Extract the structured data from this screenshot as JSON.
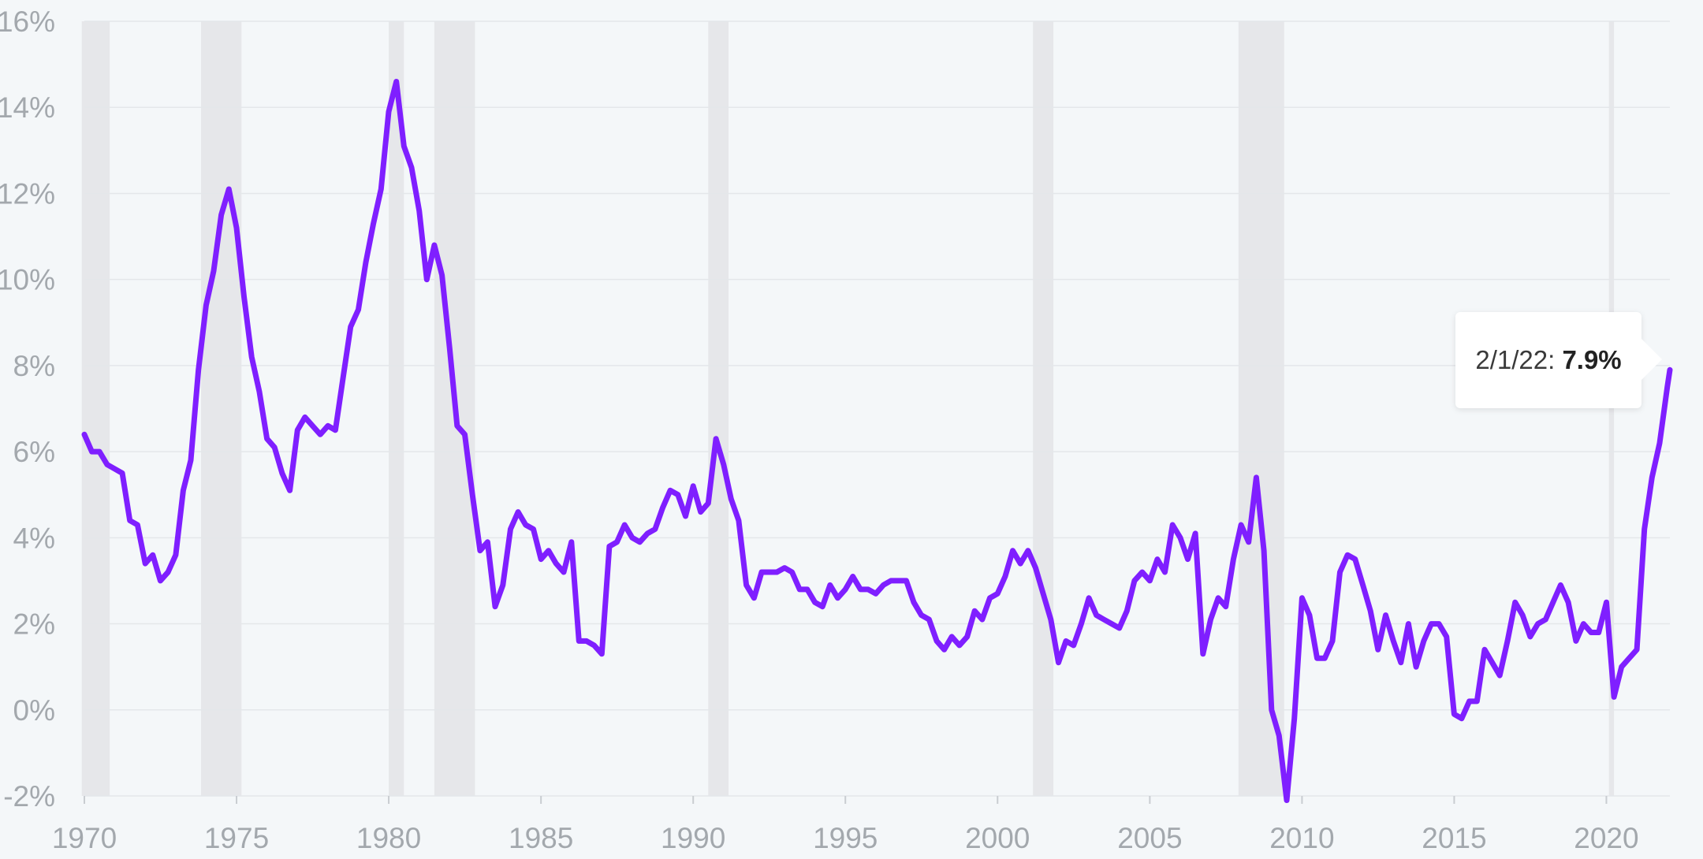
{
  "chart_data": {
    "type": "line",
    "title": "",
    "xlabel": "",
    "ylabel": "",
    "xlim": [
      "1970-01-01",
      "2022-02-01"
    ],
    "ylim": [
      -2,
      16
    ],
    "x_ticks": [
      "1970",
      "1975",
      "1980",
      "1985",
      "1990",
      "1995",
      "2000",
      "2005",
      "2010",
      "2015",
      "2020"
    ],
    "y_ticks": [
      "-2%",
      "0%",
      "2%",
      "4%",
      "6%",
      "8%",
      "10%",
      "12%",
      "14%",
      "16%"
    ],
    "grid": "horizontal",
    "line_color": "#7f1fff",
    "shade_color": "#e6e7ea",
    "recession_shading": [
      [
        "1969-12-01",
        "1970-11-01"
      ],
      [
        "1973-11-01",
        "1975-03-01"
      ],
      [
        "1980-01-01",
        "1980-07-01"
      ],
      [
        "1981-07-01",
        "1982-11-01"
      ],
      [
        "1990-07-01",
        "1991-03-01"
      ],
      [
        "2001-03-01",
        "2001-11-01"
      ],
      [
        "2007-12-01",
        "2009-06-01"
      ],
      [
        "2020-02-01",
        "2020-04-01"
      ]
    ],
    "series": [
      {
        "points": [
          [
            "1970-01-01",
            6.4
          ],
          [
            "1970-04-01",
            6.0
          ],
          [
            "1970-07-01",
            6.0
          ],
          [
            "1970-10-01",
            5.7
          ],
          [
            "1971-01-01",
            5.6
          ],
          [
            "1971-04-01",
            5.5
          ],
          [
            "1971-07-01",
            4.4
          ],
          [
            "1971-10-01",
            4.3
          ],
          [
            "1972-01-01",
            3.4
          ],
          [
            "1972-04-01",
            3.6
          ],
          [
            "1972-07-01",
            3.0
          ],
          [
            "1972-10-01",
            3.2
          ],
          [
            "1973-01-01",
            3.6
          ],
          [
            "1973-04-01",
            5.1
          ],
          [
            "1973-07-01",
            5.8
          ],
          [
            "1973-10-01",
            7.9
          ],
          [
            "1974-01-01",
            9.4
          ],
          [
            "1974-04-01",
            10.2
          ],
          [
            "1974-07-01",
            11.5
          ],
          [
            "1974-10-01",
            12.1
          ],
          [
            "1975-01-01",
            11.2
          ],
          [
            "1975-04-01",
            9.6
          ],
          [
            "1975-07-01",
            8.2
          ],
          [
            "1975-10-01",
            7.4
          ],
          [
            "1976-01-01",
            6.3
          ],
          [
            "1976-04-01",
            6.1
          ],
          [
            "1976-07-01",
            5.5
          ],
          [
            "1976-10-01",
            5.1
          ],
          [
            "1977-01-01",
            6.5
          ],
          [
            "1977-04-01",
            6.8
          ],
          [
            "1977-07-01",
            6.6
          ],
          [
            "1977-10-01",
            6.4
          ],
          [
            "1978-01-01",
            6.6
          ],
          [
            "1978-04-01",
            6.5
          ],
          [
            "1978-07-01",
            7.7
          ],
          [
            "1978-10-01",
            8.9
          ],
          [
            "1979-01-01",
            9.3
          ],
          [
            "1979-04-01",
            10.4
          ],
          [
            "1979-07-01",
            11.3
          ],
          [
            "1979-10-01",
            12.1
          ],
          [
            "1980-01-01",
            13.9
          ],
          [
            "1980-04-01",
            14.6
          ],
          [
            "1980-07-01",
            13.1
          ],
          [
            "1980-10-01",
            12.6
          ],
          [
            "1981-01-01",
            11.6
          ],
          [
            "1981-04-01",
            10.0
          ],
          [
            "1981-07-01",
            10.8
          ],
          [
            "1981-10-01",
            10.1
          ],
          [
            "1982-01-01",
            8.4
          ],
          [
            "1982-04-01",
            6.6
          ],
          [
            "1982-07-01",
            6.4
          ],
          [
            "1982-10-01",
            5.0
          ],
          [
            "1983-01-01",
            3.7
          ],
          [
            "1983-04-01",
            3.9
          ],
          [
            "1983-07-01",
            2.4
          ],
          [
            "1983-10-01",
            2.9
          ],
          [
            "1984-01-01",
            4.2
          ],
          [
            "1984-04-01",
            4.6
          ],
          [
            "1984-07-01",
            4.3
          ],
          [
            "1984-10-01",
            4.2
          ],
          [
            "1985-01-01",
            3.5
          ],
          [
            "1985-04-01",
            3.7
          ],
          [
            "1985-07-01",
            3.4
          ],
          [
            "1985-10-01",
            3.2
          ],
          [
            "1986-01-01",
            3.9
          ],
          [
            "1986-04-01",
            1.6
          ],
          [
            "1986-07-01",
            1.6
          ],
          [
            "1986-10-01",
            1.5
          ],
          [
            "1987-01-01",
            1.3
          ],
          [
            "1987-04-01",
            3.8
          ],
          [
            "1987-07-01",
            3.9
          ],
          [
            "1987-10-01",
            4.3
          ],
          [
            "1988-01-01",
            4.0
          ],
          [
            "1988-04-01",
            3.9
          ],
          [
            "1988-07-01",
            4.1
          ],
          [
            "1988-10-01",
            4.2
          ],
          [
            "1989-01-01",
            4.7
          ],
          [
            "1989-04-01",
            5.1
          ],
          [
            "1989-07-01",
            5.0
          ],
          [
            "1989-10-01",
            4.5
          ],
          [
            "1990-01-01",
            5.2
          ],
          [
            "1990-04-01",
            4.6
          ],
          [
            "1990-07-01",
            4.8
          ],
          [
            "1990-10-01",
            6.3
          ],
          [
            "1991-01-01",
            5.7
          ],
          [
            "1991-04-01",
            4.9
          ],
          [
            "1991-07-01",
            4.4
          ],
          [
            "1991-10-01",
            2.9
          ],
          [
            "1992-01-01",
            2.6
          ],
          [
            "1992-04-01",
            3.2
          ],
          [
            "1992-07-01",
            3.2
          ],
          [
            "1992-10-01",
            3.2
          ],
          [
            "1993-01-01",
            3.3
          ],
          [
            "1993-04-01",
            3.2
          ],
          [
            "1993-07-01",
            2.8
          ],
          [
            "1993-10-01",
            2.8
          ],
          [
            "1994-01-01",
            2.5
          ],
          [
            "1994-04-01",
            2.4
          ],
          [
            "1994-07-01",
            2.9
          ],
          [
            "1994-10-01",
            2.6
          ],
          [
            "1995-01-01",
            2.8
          ],
          [
            "1995-04-01",
            3.1
          ],
          [
            "1995-07-01",
            2.8
          ],
          [
            "1995-10-01",
            2.8
          ],
          [
            "1996-01-01",
            2.7
          ],
          [
            "1996-04-01",
            2.9
          ],
          [
            "1996-07-01",
            3.0
          ],
          [
            "1996-10-01",
            3.0
          ],
          [
            "1997-01-01",
            3.0
          ],
          [
            "1997-04-01",
            2.5
          ],
          [
            "1997-07-01",
            2.2
          ],
          [
            "1997-10-01",
            2.1
          ],
          [
            "1998-01-01",
            1.6
          ],
          [
            "1998-04-01",
            1.4
          ],
          [
            "1998-07-01",
            1.7
          ],
          [
            "1998-10-01",
            1.5
          ],
          [
            "1999-01-01",
            1.7
          ],
          [
            "1999-04-01",
            2.3
          ],
          [
            "1999-07-01",
            2.1
          ],
          [
            "1999-10-01",
            2.6
          ],
          [
            "2000-01-01",
            2.7
          ],
          [
            "2000-04-01",
            3.1
          ],
          [
            "2000-07-01",
            3.7
          ],
          [
            "2000-10-01",
            3.4
          ],
          [
            "2001-01-01",
            3.7
          ],
          [
            "2001-04-01",
            3.3
          ],
          [
            "2001-07-01",
            2.7
          ],
          [
            "2001-10-01",
            2.1
          ],
          [
            "2002-01-01",
            1.1
          ],
          [
            "2002-04-01",
            1.6
          ],
          [
            "2002-07-01",
            1.5
          ],
          [
            "2002-10-01",
            2.0
          ],
          [
            "2003-01-01",
            2.6
          ],
          [
            "2003-04-01",
            2.2
          ],
          [
            "2003-07-01",
            2.1
          ],
          [
            "2003-10-01",
            2.0
          ],
          [
            "2004-01-01",
            1.9
          ],
          [
            "2004-04-01",
            2.3
          ],
          [
            "2004-07-01",
            3.0
          ],
          [
            "2004-10-01",
            3.2
          ],
          [
            "2005-01-01",
            3.0
          ],
          [
            "2005-04-01",
            3.5
          ],
          [
            "2005-07-01",
            3.2
          ],
          [
            "2005-10-01",
            4.3
          ],
          [
            "2006-01-01",
            4.0
          ],
          [
            "2006-04-01",
            3.5
          ],
          [
            "2006-07-01",
            4.1
          ],
          [
            "2006-10-01",
            1.3
          ],
          [
            "2007-01-01",
            2.1
          ],
          [
            "2007-04-01",
            2.6
          ],
          [
            "2007-07-01",
            2.4
          ],
          [
            "2007-10-01",
            3.5
          ],
          [
            "2008-01-01",
            4.3
          ],
          [
            "2008-04-01",
            3.9
          ],
          [
            "2008-07-01",
            5.4
          ],
          [
            "2008-10-01",
            3.7
          ],
          [
            "2009-01-01",
            0.0
          ],
          [
            "2009-04-01",
            -0.6
          ],
          [
            "2009-07-01",
            -2.1
          ],
          [
            "2009-10-01",
            -0.2
          ],
          [
            "2010-01-01",
            2.6
          ],
          [
            "2010-04-01",
            2.2
          ],
          [
            "2010-07-01",
            1.2
          ],
          [
            "2010-10-01",
            1.2
          ],
          [
            "2011-01-01",
            1.6
          ],
          [
            "2011-04-01",
            3.2
          ],
          [
            "2011-07-01",
            3.6
          ],
          [
            "2011-10-01",
            3.5
          ],
          [
            "2012-01-01",
            2.9
          ],
          [
            "2012-04-01",
            2.3
          ],
          [
            "2012-07-01",
            1.4
          ],
          [
            "2012-10-01",
            2.2
          ],
          [
            "2013-01-01",
            1.6
          ],
          [
            "2013-04-01",
            1.1
          ],
          [
            "2013-07-01",
            2.0
          ],
          [
            "2013-10-01",
            1.0
          ],
          [
            "2014-01-01",
            1.6
          ],
          [
            "2014-04-01",
            2.0
          ],
          [
            "2014-07-01",
            2.0
          ],
          [
            "2014-10-01",
            1.7
          ],
          [
            "2015-01-01",
            -0.1
          ],
          [
            "2015-04-01",
            -0.2
          ],
          [
            "2015-07-01",
            0.2
          ],
          [
            "2015-10-01",
            0.2
          ],
          [
            "2016-01-01",
            1.4
          ],
          [
            "2016-04-01",
            1.1
          ],
          [
            "2016-07-01",
            0.8
          ],
          [
            "2016-10-01",
            1.6
          ],
          [
            "2017-01-01",
            2.5
          ],
          [
            "2017-04-01",
            2.2
          ],
          [
            "2017-07-01",
            1.7
          ],
          [
            "2017-10-01",
            2.0
          ],
          [
            "2018-01-01",
            2.1
          ],
          [
            "2018-04-01",
            2.5
          ],
          [
            "2018-07-01",
            2.9
          ],
          [
            "2018-10-01",
            2.5
          ],
          [
            "2019-01-01",
            1.6
          ],
          [
            "2019-04-01",
            2.0
          ],
          [
            "2019-07-01",
            1.8
          ],
          [
            "2019-10-01",
            1.8
          ],
          [
            "2020-01-01",
            2.5
          ],
          [
            "2020-04-01",
            0.3
          ],
          [
            "2020-07-01",
            1.0
          ],
          [
            "2020-10-01",
            1.2
          ],
          [
            "2021-01-01",
            1.4
          ],
          [
            "2021-04-01",
            4.2
          ],
          [
            "2021-07-01",
            5.4
          ],
          [
            "2021-10-01",
            6.2
          ],
          [
            "2022-01-01",
            7.5
          ],
          [
            "2022-02-01",
            7.9
          ]
        ]
      }
    ]
  },
  "tooltip": {
    "date": "2/1/22:",
    "value": "7.9%"
  }
}
